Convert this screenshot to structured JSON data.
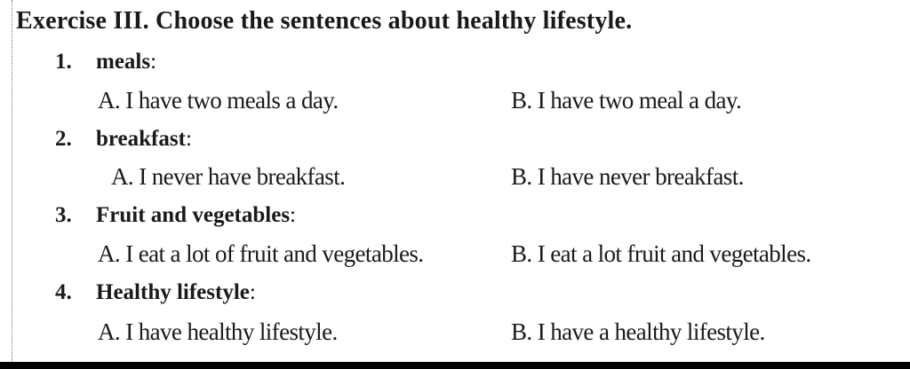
{
  "title": "Exercise III. Choose the sentences about healthy lifestyle.",
  "questions": [
    {
      "number": "1.",
      "label": "meals",
      "colon": ":",
      "a": "A. I have two meals a day.",
      "b": "B. I have two meal a day."
    },
    {
      "number": "2.",
      "label": "breakfast",
      "colon": ":",
      "a": "A. I never have breakfast.",
      "b": "B. I have never breakfast."
    },
    {
      "number": "3.",
      "label": "Fruit and vegetables",
      "colon": ":",
      "a": "A. I eat a lot of fruit and vegetables.",
      "b": "B. I eat a lot fruit and vegetables."
    },
    {
      "number": "4.",
      "label": "Healthy lifestyle",
      "colon": ":",
      "a": "A. I have healthy lifestyle.",
      "b": "B. I have a healthy lifestyle."
    }
  ]
}
